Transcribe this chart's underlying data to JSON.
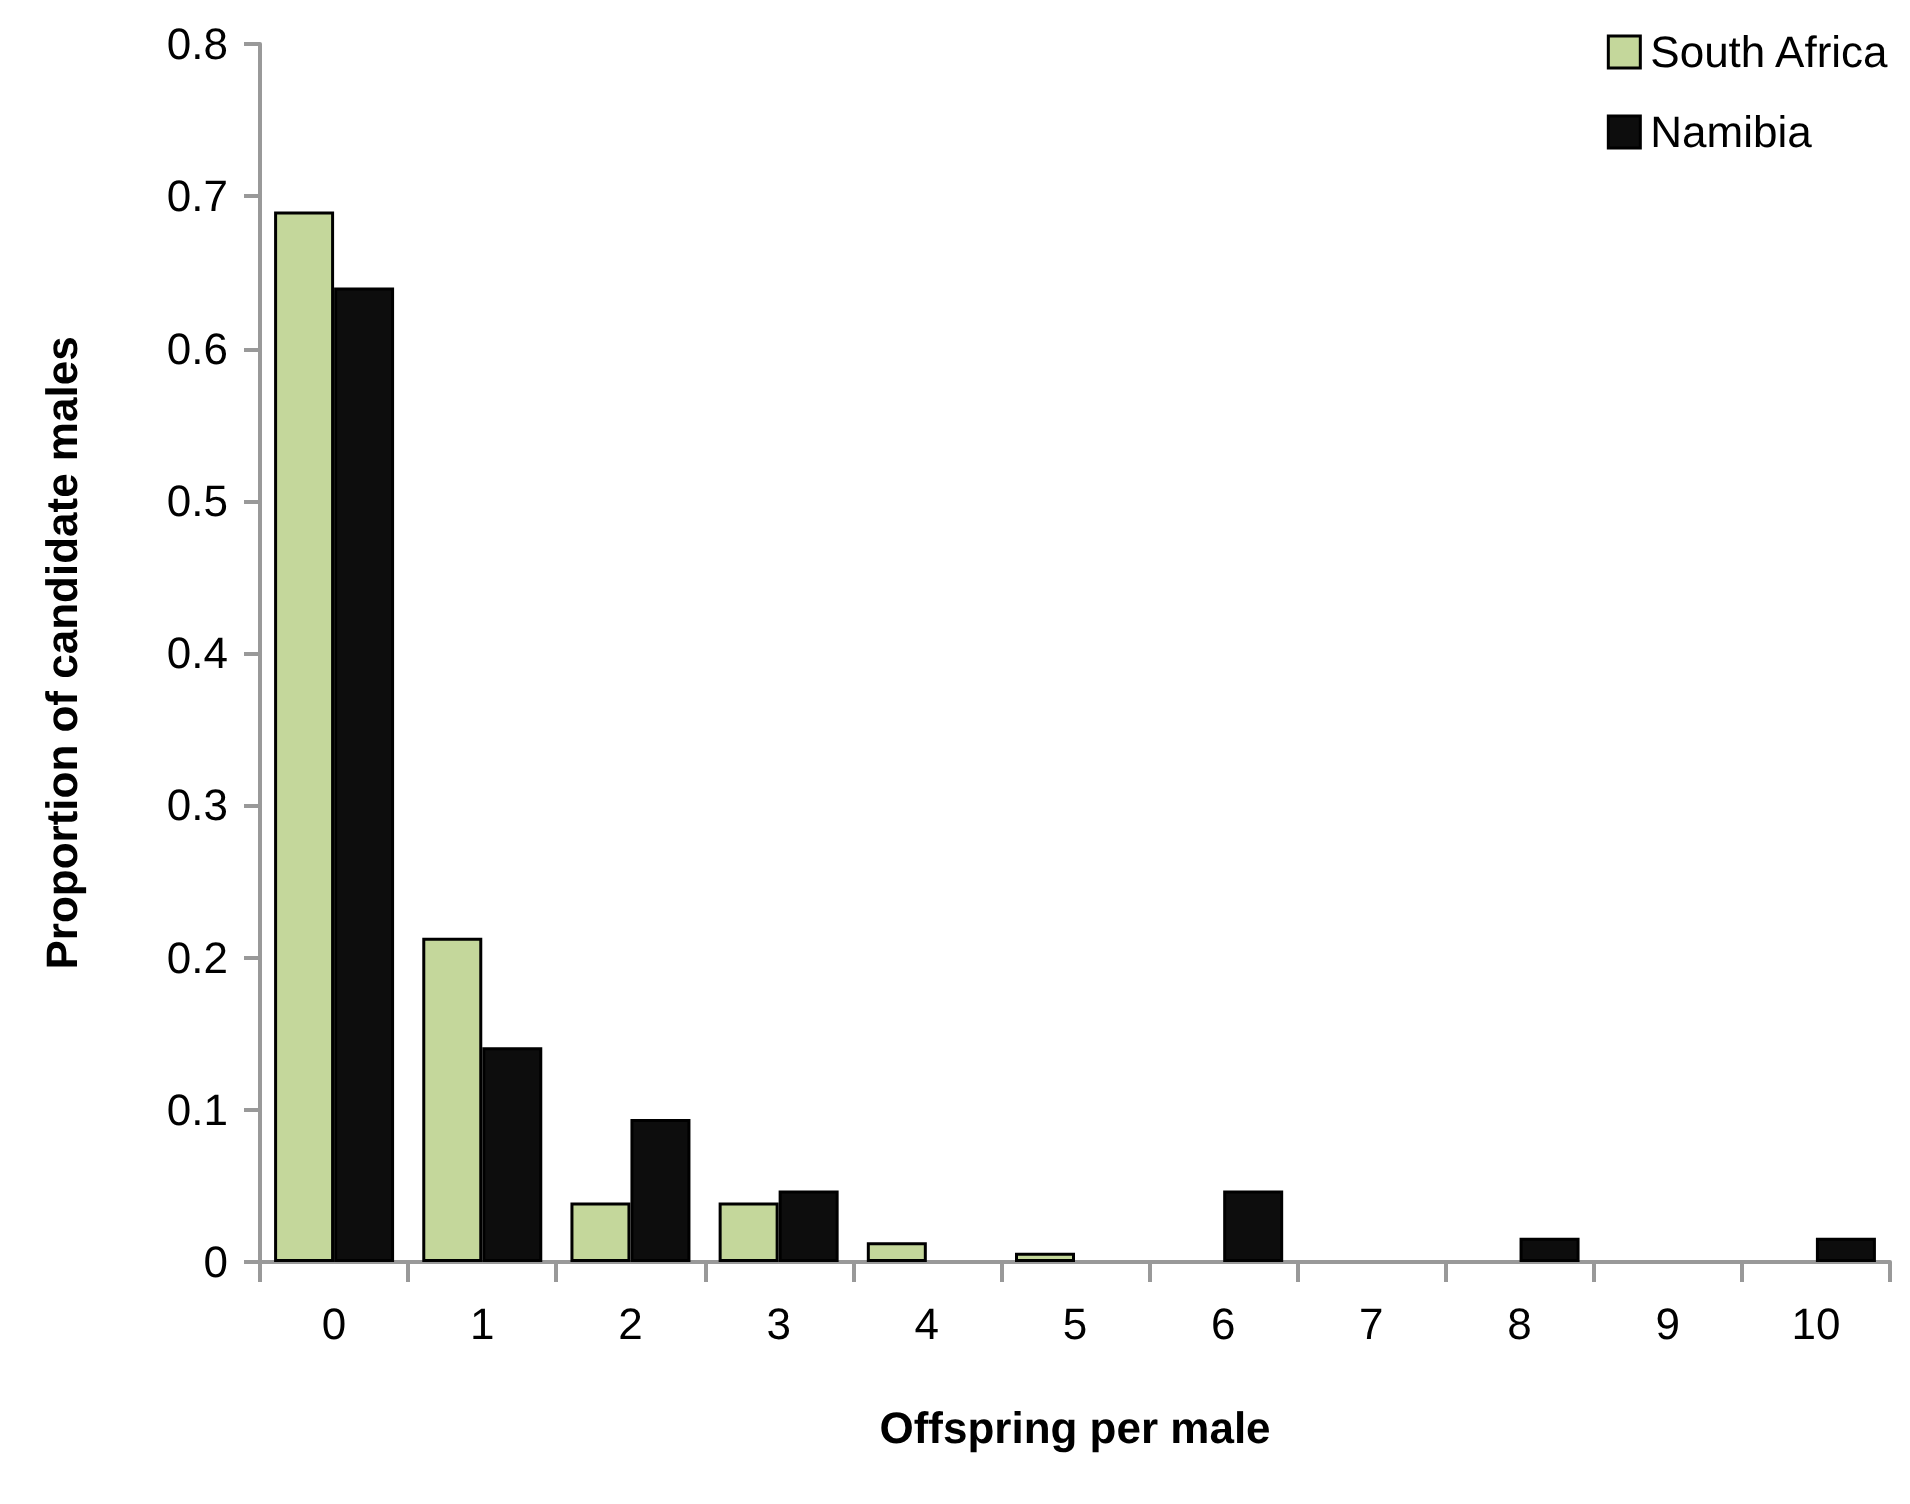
{
  "chart_data": {
    "type": "bar",
    "xlabel": "Offspring per male",
    "ylabel": "Proportion of candidate males",
    "categories": [
      "0",
      "1",
      "2",
      "3",
      "4",
      "5",
      "6",
      "7",
      "8",
      "9",
      "10"
    ],
    "series": [
      {
        "name": "South Africa",
        "color": "#c4d79b",
        "values": [
          0.69,
          0.213,
          0.039,
          0.039,
          0.013,
          0.006,
          null,
          null,
          null,
          null,
          null
        ]
      },
      {
        "name": "Namibia",
        "color": "#0d0d0d",
        "values": [
          0.64,
          0.141,
          0.094,
          0.047,
          null,
          null,
          0.047,
          null,
          0.016,
          null,
          0.016
        ]
      }
    ],
    "ylim": [
      0,
      0.8
    ],
    "yticks": [
      0,
      0.1,
      0.2,
      0.3,
      0.4,
      0.5,
      0.6,
      0.7,
      0.8
    ],
    "grid": false,
    "legend": "top right"
  }
}
